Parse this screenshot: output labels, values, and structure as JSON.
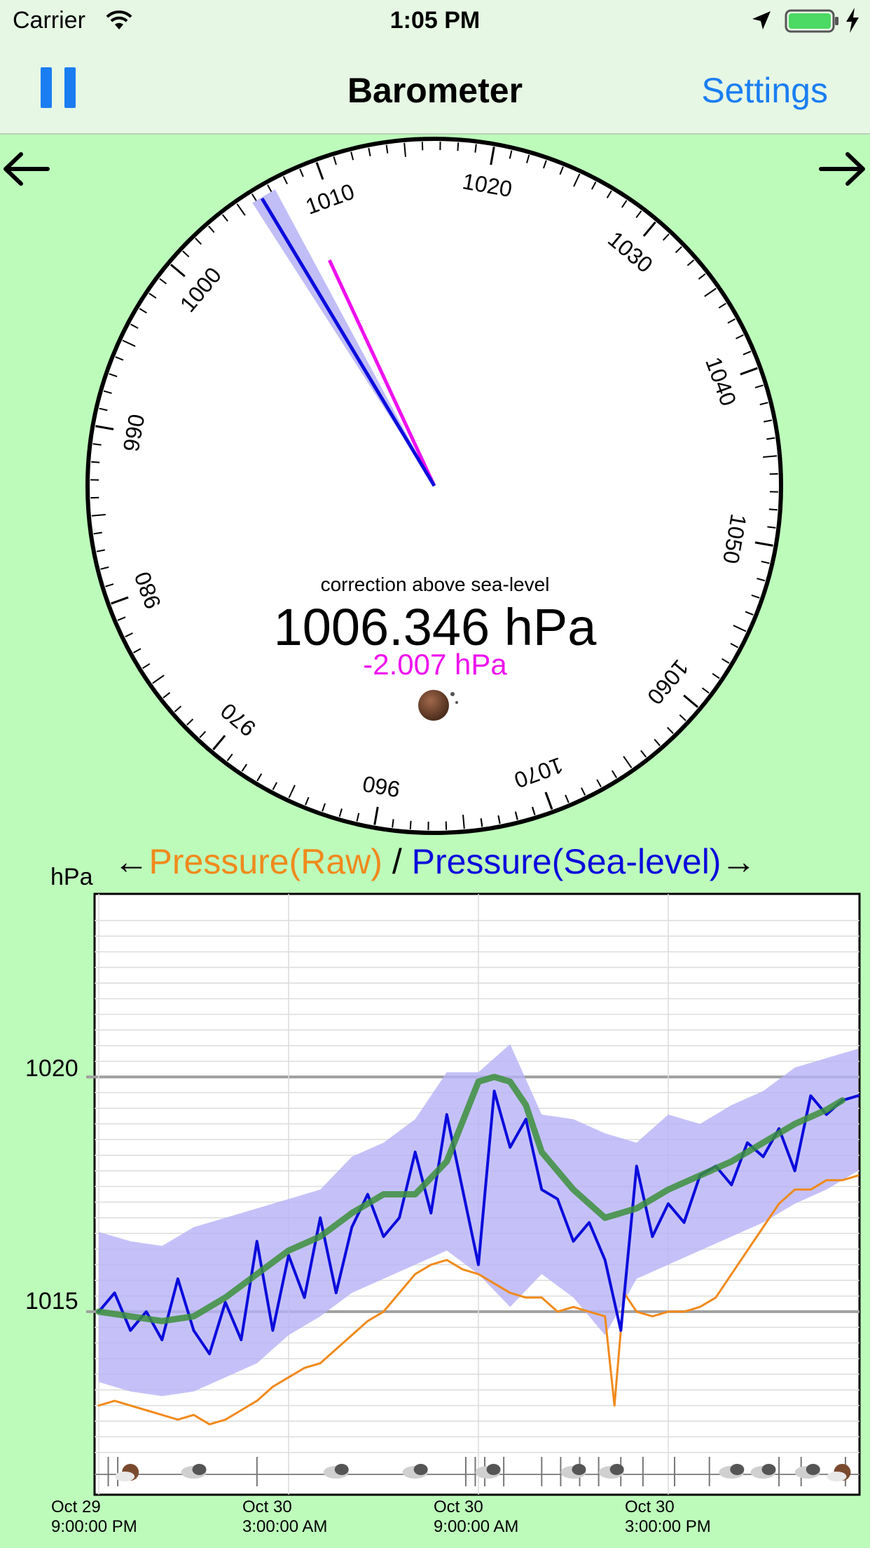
{
  "status_bar": {
    "carrier": "Carrier",
    "time": "1:05 PM"
  },
  "nav": {
    "title": "Barometer",
    "settings_label": "Settings"
  },
  "gauge": {
    "dial_labels": [
      "960",
      "970",
      "980",
      "990",
      "1000",
      "1010",
      "1020",
      "1030",
      "1040",
      "1050",
      "1060",
      "1070"
    ],
    "caption": "correction above sea-level",
    "pressure_value": "1006.346 hPa",
    "correction_value": "-2.007 hPa",
    "needle_sea_level": 1006.346,
    "needle_raw": 1008.353,
    "colors": {
      "sea_level_needle": "#0b0bdc",
      "raw_needle": "#ee11ee"
    }
  },
  "chart_title": {
    "left_arrow": "←",
    "raw_label": "Pressure(Raw)",
    "separator": " / ",
    "sea_label": "Pressure(Sea-level)",
    "right_arrow": "→"
  },
  "chart_data": {
    "type": "line",
    "ylabel": "hPa",
    "y_ticks": [
      "1020",
      "1015"
    ],
    "ylim": [
      1011.1,
      1023.9
    ],
    "x_ticks": [
      {
        "date": "Oct 29",
        "time": "9:00:00 PM"
      },
      {
        "date": "Oct 30",
        "time": "3:00:00 AM"
      },
      {
        "date": "Oct 30",
        "time": "9:00:00 AM"
      },
      {
        "date": "Oct 30",
        "time": "3:00:00 PM"
      }
    ],
    "x_hours_range": [
      0,
      24
    ],
    "series": [
      {
        "color": "#f08a1c",
        "x": [
          0,
          0.5,
          1,
          1.5,
          2,
          2.5,
          3,
          3.5,
          4,
          4.5,
          5,
          5.5,
          6,
          6.5,
          7,
          7.5,
          8,
          8.5,
          9,
          9.5,
          10,
          10.5,
          11,
          11.5,
          12,
          12.5,
          13,
          13.5,
          14,
          14.5,
          15,
          15.5,
          16,
          16.3,
          16.6,
          17,
          17.5,
          18,
          18.5,
          19,
          19.5,
          20,
          20.5,
          21,
          21.5,
          22,
          22.5,
          23,
          23.5,
          24
        ],
        "values": [
          1013.0,
          1013.1,
          1013.0,
          1012.9,
          1012.8,
          1012.7,
          1012.8,
          1012.6,
          1012.7,
          1012.9,
          1013.1,
          1013.4,
          1013.6,
          1013.8,
          1013.9,
          1014.2,
          1014.5,
          1014.8,
          1015.0,
          1015.4,
          1015.8,
          1016.0,
          1016.1,
          1015.9,
          1015.8,
          1015.6,
          1015.4,
          1015.3,
          1015.3,
          1015.0,
          1015.1,
          1015.0,
          1014.9,
          1013.0,
          1015.4,
          1015.0,
          1014.9,
          1015.0,
          1015.0,
          1015.1,
          1015.3,
          1015.8,
          1016.3,
          1016.8,
          1017.3,
          1017.6,
          1017.6,
          1017.8,
          1017.8,
          1017.9
        ]
      },
      {
        "color": "#0b0bdc",
        "x": [
          0,
          0.5,
          1,
          1.5,
          2,
          2.5,
          3,
          3.5,
          4,
          4.5,
          5,
          5.5,
          6,
          6.5,
          7,
          7.5,
          8,
          8.5,
          9,
          9.5,
          10,
          10.5,
          11,
          11.5,
          12,
          12.5,
          13,
          13.5,
          14,
          14.5,
          15,
          15.5,
          16,
          16.5,
          17,
          17.5,
          18,
          18.5,
          19,
          19.5,
          20,
          20.5,
          21,
          21.5,
          22,
          22.5,
          23,
          23.5,
          24
        ],
        "values": [
          1015.0,
          1015.4,
          1014.6,
          1015.0,
          1014.4,
          1015.7,
          1014.6,
          1014.1,
          1015.2,
          1014.4,
          1016.5,
          1014.6,
          1016.2,
          1015.3,
          1017.0,
          1015.4,
          1016.8,
          1017.5,
          1016.6,
          1017.0,
          1018.4,
          1017.1,
          1019.2,
          1017.6,
          1016.0,
          1019.7,
          1018.5,
          1019.1,
          1017.6,
          1017.4,
          1016.5,
          1016.9,
          1016.1,
          1014.6,
          1018.1,
          1016.6,
          1017.3,
          1016.9,
          1017.9,
          1018.1,
          1017.7,
          1018.6,
          1018.3,
          1018.9,
          1018.0,
          1019.6,
          1019.2,
          1019.5,
          1019.6
        ]
      },
      {
        "color": "#3c8f3c",
        "x": [
          0,
          1,
          2,
          3,
          4,
          5,
          6,
          7,
          8,
          9,
          10,
          11,
          12,
          12.5,
          13,
          13.5,
          14,
          15,
          16,
          17,
          18,
          19,
          20,
          21,
          22,
          23,
          23.5
        ],
        "values": [
          1015.0,
          1014.9,
          1014.8,
          1014.9,
          1015.3,
          1015.8,
          1016.3,
          1016.6,
          1017.1,
          1017.5,
          1017.5,
          1018.2,
          1019.9,
          1020.0,
          1019.9,
          1019.4,
          1018.4,
          1017.6,
          1017.0,
          1017.2,
          1017.6,
          1017.9,
          1018.2,
          1018.6,
          1019.0,
          1019.3,
          1019.5
        ]
      }
    ],
    "band": {
      "color": "#b6b2f6",
      "x": [
        0,
        1,
        2,
        3,
        4,
        5,
        6,
        7,
        8,
        9,
        10,
        11,
        12,
        13,
        14,
        15,
        16,
        17,
        18,
        19,
        20,
        21,
        22,
        23,
        24
      ],
      "upper": [
        1016.7,
        1016.5,
        1016.4,
        1016.8,
        1017.0,
        1017.2,
        1017.4,
        1017.6,
        1018.3,
        1018.6,
        1019.1,
        1020.1,
        1020.1,
        1020.7,
        1019.2,
        1019.1,
        1018.8,
        1018.6,
        1019.2,
        1019.0,
        1019.4,
        1019.7,
        1020.2,
        1020.4,
        1020.6
      ],
      "lower": [
        1013.5,
        1013.3,
        1013.2,
        1013.3,
        1013.6,
        1013.9,
        1014.5,
        1014.9,
        1015.4,
        1015.7,
        1016.0,
        1016.3,
        1015.8,
        1015.1,
        1015.8,
        1015.3,
        1014.5,
        1015.7,
        1016.0,
        1016.3,
        1016.6,
        1016.9,
        1017.3,
        1017.6,
        1018.0
      ]
    }
  },
  "weather_strip": {
    "icons": [
      "sun-moon-icon",
      "cloud-icon",
      "cloud-icon",
      "cloud-icon",
      "cloud-icon",
      "cloud-icon",
      "cloud-icon",
      "cloud-icon",
      "cloud-icon",
      "cloud-icon",
      "sun-moon-icon"
    ]
  }
}
